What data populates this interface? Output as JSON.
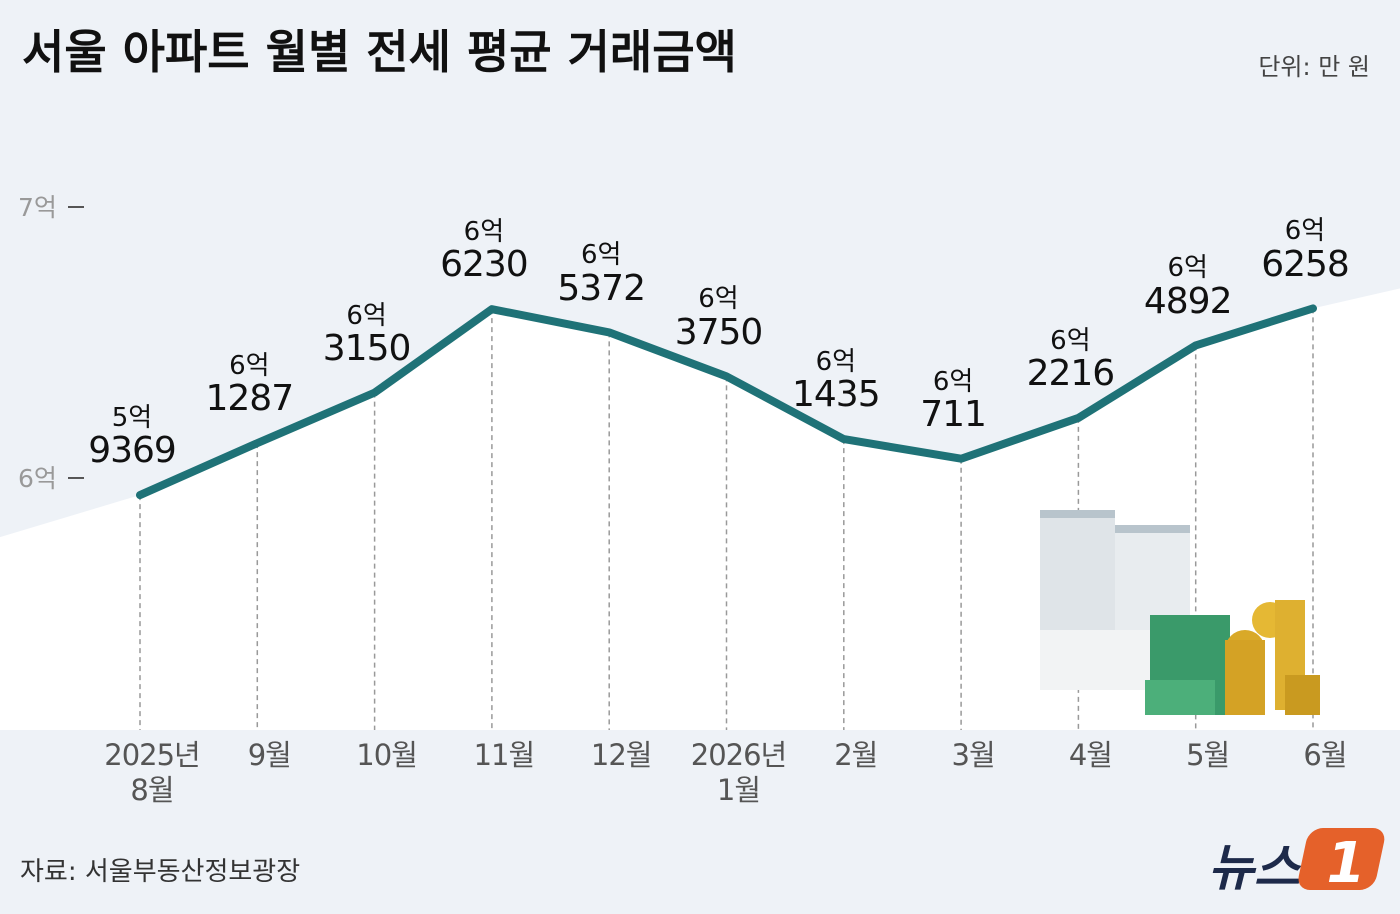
{
  "title": "서울 아파트 월별 전세 평균 거래금액",
  "unit": "단위: 만 원",
  "source": "자료: 서울부동산정보광장",
  "logo": {
    "text": "뉴스",
    "mark": "1"
  },
  "chart_data": {
    "type": "line",
    "color": "#1f7277",
    "categories": [
      "2025년 8월",
      "9월",
      "10월",
      "11월",
      "12월",
      "2026년 1월",
      "2월",
      "3월",
      "4월",
      "5월",
      "6월"
    ],
    "values": [
      59369,
      61287,
      63150,
      66230,
      65372,
      63750,
      61435,
      60711,
      62216,
      64892,
      66258
    ],
    "value_labels": [
      [
        "5억",
        "9369"
      ],
      [
        "6억",
        "1287"
      ],
      [
        "6억",
        "3150"
      ],
      [
        "6억",
        "6230"
      ],
      [
        "6억",
        "5372"
      ],
      [
        "6억",
        "3750"
      ],
      [
        "6억",
        "1435"
      ],
      [
        "6억",
        "711"
      ],
      [
        "6억",
        "2216"
      ],
      [
        "6억",
        "4892"
      ],
      [
        "6억",
        "6258"
      ]
    ],
    "ylim": [
      50700,
      70000
    ],
    "yticks": [
      {
        "value": 60000,
        "label": "6억"
      },
      {
        "value": 70000,
        "label": "7억"
      }
    ]
  }
}
